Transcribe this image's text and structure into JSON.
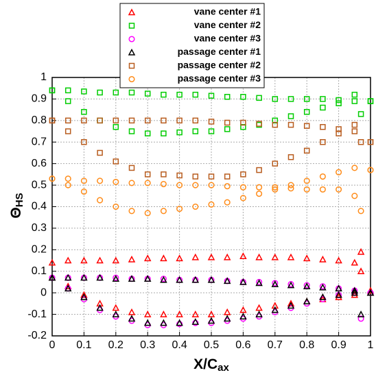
{
  "chart_data": {
    "type": "scatter",
    "xlabel": "X/C",
    "xlabel_sub": "ax",
    "ylabel": "Θ",
    "ylabel_sub": "HS",
    "xlim": [
      0,
      1
    ],
    "ylim": [
      -0.2,
      1
    ],
    "xticks": [
      0,
      0.1,
      0.2,
      0.3,
      0.4,
      0.5,
      0.6,
      0.7,
      0.8,
      0.9,
      1
    ],
    "yticks": [
      -0.2,
      -0.1,
      0,
      0.1,
      0.2,
      0.3,
      0.4,
      0.5,
      0.6,
      0.7,
      0.8,
      0.9,
      1
    ],
    "grid": true,
    "series": [
      {
        "name": "vane center #1",
        "color": "#ff0000",
        "marker": "triangle",
        "x": [
          0,
          0.05,
          0.1,
          0.15,
          0.2,
          0.25,
          0.3,
          0.35,
          0.4,
          0.45,
          0.5,
          0.55,
          0.6,
          0.65,
          0.7,
          0.75,
          0.8,
          0.85,
          0.9,
          0.95,
          1,
          0,
          0.05,
          0.1,
          0.15,
          0.2,
          0.25,
          0.3,
          0.35,
          0.4,
          0.45,
          0.5,
          0.55,
          0.6,
          0.65,
          0.7,
          0.75,
          0.8,
          0.85,
          0.9,
          0.95,
          1,
          0.97,
          0.97
        ],
        "values": [
          0.14,
          0.15,
          0.15,
          0.15,
          0.15,
          0.155,
          0.16,
          0.16,
          0.16,
          0.165,
          0.165,
          0.165,
          0.17,
          0.165,
          0.165,
          0.165,
          0.16,
          0.155,
          0.15,
          0.14,
          0.01,
          0.07,
          0.03,
          -0.01,
          -0.05,
          -0.07,
          -0.09,
          -0.1,
          -0.1,
          -0.1,
          -0.1,
          -0.1,
          -0.09,
          -0.08,
          -0.07,
          -0.06,
          -0.05,
          -0.04,
          -0.03,
          -0.02,
          -0.01,
          0,
          0.19,
          0.1
        ]
      },
      {
        "name": "vane center #2",
        "color": "#00cc00",
        "marker": "square",
        "x": [
          0,
          0.05,
          0.1,
          0.15,
          0.2,
          0.25,
          0.3,
          0.35,
          0.4,
          0.45,
          0.5,
          0.55,
          0.6,
          0.65,
          0.7,
          0.75,
          0.8,
          0.85,
          0.9,
          0.95,
          1,
          0,
          0.05,
          0.1,
          0.15,
          0.2,
          0.25,
          0.3,
          0.35,
          0.4,
          0.45,
          0.5,
          0.55,
          0.6,
          0.65,
          0.7,
          0.75,
          0.8,
          0.85,
          0.9,
          0.95,
          1,
          0.97
        ],
        "values": [
          0.94,
          0.94,
          0.935,
          0.93,
          0.93,
          0.93,
          0.925,
          0.92,
          0.92,
          0.92,
          0.915,
          0.91,
          0.91,
          0.905,
          0.9,
          0.9,
          0.9,
          0.9,
          0.895,
          0.89,
          0.89,
          0.94,
          0.89,
          0.84,
          0.8,
          0.77,
          0.75,
          0.74,
          0.74,
          0.745,
          0.75,
          0.75,
          0.76,
          0.77,
          0.78,
          0.8,
          0.82,
          0.84,
          0.86,
          0.88,
          0.92,
          0.89,
          0.83
        ]
      },
      {
        "name": "vane center #3",
        "color": "#ff00ff",
        "marker": "circle",
        "x": [
          0,
          0.05,
          0.1,
          0.15,
          0.2,
          0.25,
          0.3,
          0.35,
          0.4,
          0.45,
          0.5,
          0.55,
          0.6,
          0.65,
          0.7,
          0.75,
          0.8,
          0.85,
          0.9,
          0.95,
          1,
          0,
          0.05,
          0.1,
          0.15,
          0.2,
          0.25,
          0.3,
          0.35,
          0.4,
          0.45,
          0.5,
          0.55,
          0.6,
          0.65,
          0.7,
          0.75,
          0.8,
          0.85,
          0.9,
          0.95,
          1,
          0.97
        ],
        "values": [
          0.07,
          0.07,
          0.07,
          0.07,
          0.07,
          0.065,
          0.065,
          0.065,
          0.06,
          0.06,
          0.06,
          0.055,
          0.05,
          0.05,
          0.045,
          0.04,
          0.035,
          0.03,
          0.02,
          0.01,
          0,
          0.07,
          0.02,
          -0.03,
          -0.08,
          -0.11,
          -0.13,
          -0.15,
          -0.15,
          -0.145,
          -0.14,
          -0.14,
          -0.13,
          -0.12,
          -0.11,
          -0.09,
          -0.07,
          -0.05,
          -0.03,
          -0.01,
          0,
          0,
          -0.12
        ]
      },
      {
        "name": "passage center #1",
        "color": "#000000",
        "marker": "triangle",
        "x": [
          0,
          0.05,
          0.1,
          0.15,
          0.2,
          0.25,
          0.3,
          0.35,
          0.4,
          0.45,
          0.5,
          0.55,
          0.6,
          0.65,
          0.7,
          0.75,
          0.8,
          0.85,
          0.9,
          0.95,
          1,
          0,
          0.05,
          0.1,
          0.15,
          0.2,
          0.25,
          0.3,
          0.35,
          0.4,
          0.45,
          0.5,
          0.55,
          0.6,
          0.65,
          0.7,
          0.75,
          0.8,
          0.85,
          0.9,
          0.95,
          1,
          0.97
        ],
        "values": [
          0.07,
          0.07,
          0.07,
          0.07,
          0.065,
          0.065,
          0.065,
          0.06,
          0.06,
          0.06,
          0.06,
          0.055,
          0.05,
          0.045,
          0.04,
          0.035,
          0.03,
          0.025,
          0.02,
          0.01,
          0,
          0.07,
          0.02,
          -0.02,
          -0.07,
          -0.1,
          -0.12,
          -0.14,
          -0.14,
          -0.14,
          -0.135,
          -0.13,
          -0.12,
          -0.11,
          -0.1,
          -0.08,
          -0.06,
          -0.04,
          -0.02,
          -0.01,
          0,
          0,
          -0.1
        ]
      },
      {
        "name": "passage center #2",
        "color": "#b85c1e",
        "marker": "square",
        "x": [
          0,
          0.05,
          0.1,
          0.15,
          0.2,
          0.25,
          0.3,
          0.35,
          0.4,
          0.45,
          0.5,
          0.55,
          0.6,
          0.65,
          0.7,
          0.75,
          0.8,
          0.85,
          0.9,
          0.95,
          1,
          0,
          0.05,
          0.1,
          0.15,
          0.2,
          0.25,
          0.3,
          0.35,
          0.4,
          0.45,
          0.5,
          0.55,
          0.6,
          0.65,
          0.7,
          0.75,
          0.8,
          0.85,
          0.9,
          0.95,
          1,
          0.97
        ],
        "values": [
          0.8,
          0.8,
          0.8,
          0.8,
          0.8,
          0.8,
          0.8,
          0.8,
          0.8,
          0.8,
          0.795,
          0.79,
          0.79,
          0.785,
          0.78,
          0.78,
          0.775,
          0.77,
          0.76,
          0.75,
          0.7,
          0.8,
          0.75,
          0.7,
          0.65,
          0.61,
          0.58,
          0.55,
          0.55,
          0.545,
          0.54,
          0.54,
          0.54,
          0.55,
          0.57,
          0.6,
          0.63,
          0.66,
          0.7,
          0.74,
          0.78,
          0.7,
          0.7
        ]
      },
      {
        "name": "passage center #3",
        "color": "#ff8c1a",
        "marker": "circle",
        "x": [
          0,
          0.05,
          0.1,
          0.15,
          0.2,
          0.25,
          0.3,
          0.35,
          0.4,
          0.45,
          0.5,
          0.55,
          0.6,
          0.65,
          0.7,
          0.75,
          0.8,
          0.85,
          0.9,
          0.95,
          1,
          0,
          0.05,
          0.1,
          0.15,
          0.2,
          0.25,
          0.3,
          0.35,
          0.4,
          0.45,
          0.5,
          0.55,
          0.6,
          0.65,
          0.7,
          0.75,
          0.8,
          0.85,
          0.9,
          0.95,
          1,
          0.97
        ],
        "values": [
          0.53,
          0.53,
          0.52,
          0.52,
          0.515,
          0.51,
          0.51,
          0.505,
          0.5,
          0.5,
          0.5,
          0.495,
          0.49,
          0.49,
          0.49,
          0.485,
          0.48,
          0.48,
          0.48,
          0.45,
          0.57,
          0.53,
          0.5,
          0.47,
          0.43,
          0.4,
          0.38,
          0.37,
          0.38,
          0.39,
          0.4,
          0.41,
          0.42,
          0.44,
          0.46,
          0.48,
          0.5,
          0.52,
          0.54,
          0.56,
          0.58,
          0.57,
          0.38
        ]
      }
    ]
  }
}
